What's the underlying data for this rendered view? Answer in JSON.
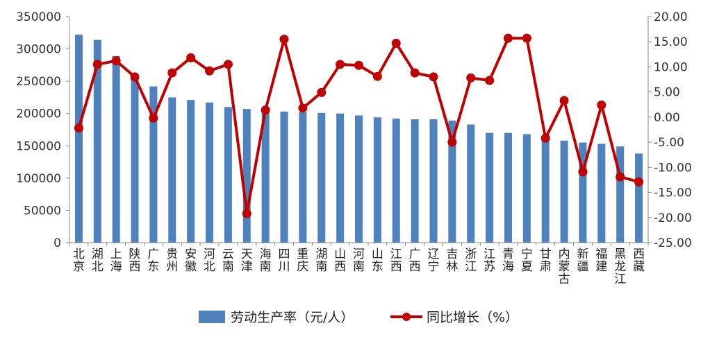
{
  "chart_data": {
    "type": "bar",
    "categories": [
      "北京",
      "湖北",
      "上海",
      "陕西",
      "广东",
      "贵州",
      "安徽",
      "河北",
      "云南",
      "天津",
      "海南",
      "四川",
      "重庆",
      "湖南",
      "山西",
      "河南",
      "山东",
      "江西",
      "广西",
      "辽宁",
      "吉林",
      "浙江",
      "江苏",
      "青海",
      "宁夏",
      "甘肃",
      "内蒙古",
      "新疆",
      "福建",
      "黑龙江",
      "西藏"
    ],
    "series": [
      {
        "name": "劳动生产率（元/人）",
        "type": "bar",
        "axis": "left",
        "color": "#4f81bd",
        "values": [
          322000,
          314000,
          289000,
          253000,
          242000,
          225000,
          221000,
          217000,
          210000,
          207000,
          204000,
          203000,
          202000,
          201000,
          200000,
          197000,
          194000,
          192000,
          191000,
          191000,
          189000,
          183000,
          170000,
          170000,
          168000,
          165000,
          158000,
          155000,
          153000,
          149000,
          138000
        ]
      },
      {
        "name": "同比增长（%）",
        "type": "line",
        "axis": "right",
        "color": "#c00000",
        "values": [
          -2.2,
          10.5,
          11.2,
          8.0,
          -0.2,
          8.8,
          11.8,
          9.2,
          10.5,
          -19.2,
          1.4,
          15.5,
          1.8,
          4.9,
          10.5,
          10.3,
          8.1,
          14.7,
          8.8,
          8.0,
          -5.0,
          7.8,
          7.3,
          15.7,
          15.7,
          -4.2,
          3.3,
          -10.9,
          2.4,
          -11.9,
          -12.9
        ]
      }
    ],
    "y_left": {
      "min": 0,
      "max": 350000,
      "step": 50000,
      "ticks": [
        "0",
        "50000",
        "100000",
        "150000",
        "200000",
        "250000",
        "300000",
        "350000"
      ]
    },
    "y_right": {
      "min": -25,
      "max": 20,
      "step": 5,
      "ticks": [
        "-25.00",
        "-20.00",
        "-15.00",
        "-10.00",
        "-5.00",
        "0.00",
        "5.00",
        "10.00",
        "15.00",
        "20.00"
      ]
    },
    "title": "",
    "xlabel": "",
    "ylabel": "",
    "grid": false,
    "legend_position": "bottom"
  }
}
